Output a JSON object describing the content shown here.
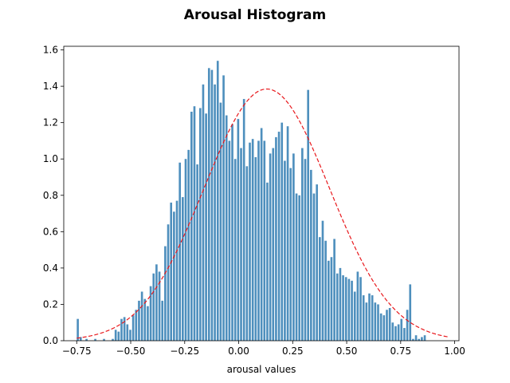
{
  "chart_data": {
    "type": "bar",
    "title": "Arousal Histogram",
    "xlabel": "arousal values",
    "ylabel": "",
    "xlim": [
      -0.81,
      1.02
    ],
    "ylim": [
      0,
      1.62
    ],
    "xticks": [
      -0.75,
      -0.5,
      -0.25,
      0,
      0.25,
      0.5,
      0.75,
      1
    ],
    "xtick_labels": [
      "−0.75",
      "−0.50",
      "−0.25",
      "0.00",
      "0.25",
      "0.50",
      "0.75",
      "1.00"
    ],
    "yticks": [
      0,
      0.2,
      0.4,
      0.6,
      0.8,
      1.0,
      1.2,
      1.4,
      1.6
    ],
    "ytick_labels": [
      "0.0",
      "0.2",
      "0.4",
      "0.6",
      "0.8",
      "1.0",
      "1.2",
      "1.4",
      "1.6"
    ],
    "bin_start": -0.745,
    "bin_width": 0.0135,
    "bar_width_fraction": 0.72,
    "values": [
      0.12,
      0.02,
      0.0,
      0.01,
      0.0,
      0.0,
      0.01,
      0.0,
      0.0,
      0.01,
      0.0,
      0.0,
      0.01,
      0.06,
      0.05,
      0.12,
      0.13,
      0.09,
      0.06,
      0.14,
      0.17,
      0.22,
      0.27,
      0.23,
      0.19,
      0.3,
      0.37,
      0.42,
      0.38,
      0.22,
      0.52,
      0.64,
      0.76,
      0.71,
      0.77,
      0.98,
      0.79,
      1.0,
      1.05,
      1.26,
      1.29,
      0.97,
      1.28,
      1.41,
      1.25,
      1.5,
      1.49,
      1.41,
      1.54,
      1.31,
      1.46,
      1.24,
      1.1,
      1.19,
      1.0,
      1.22,
      1.06,
      1.33,
      0.96,
      1.09,
      1.11,
      1.01,
      1.1,
      1.17,
      1.1,
      0.87,
      1.03,
      1.06,
      1.12,
      1.15,
      1.2,
      0.99,
      1.18,
      0.95,
      1.03,
      0.81,
      0.8,
      1.06,
      1.0,
      1.38,
      0.94,
      0.81,
      0.86,
      0.57,
      0.66,
      0.55,
      0.44,
      0.46,
      0.56,
      0.37,
      0.4,
      0.36,
      0.35,
      0.34,
      0.33,
      0.27,
      0.38,
      0.35,
      0.25,
      0.21,
      0.26,
      0.25,
      0.21,
      0.2,
      0.15,
      0.14,
      0.17,
      0.18,
      0.1,
      0.08,
      0.09,
      0.12,
      0.07,
      0.17,
      0.31,
      0.01,
      0.03,
      0.01,
      0.02,
      0.03
    ],
    "fit_curve": {
      "type": "normal_pdf_scaled",
      "peak_x": 0.13,
      "peak_y": 1.385,
      "sigma": 0.29,
      "x_range": [
        -0.75,
        0.97
      ],
      "style": "dashed"
    },
    "grid": false,
    "legend": "none"
  },
  "colors": {
    "bar": "#4e8fbd",
    "curve": "#e8181c",
    "axis": "#000000",
    "background": "#ffffff"
  }
}
